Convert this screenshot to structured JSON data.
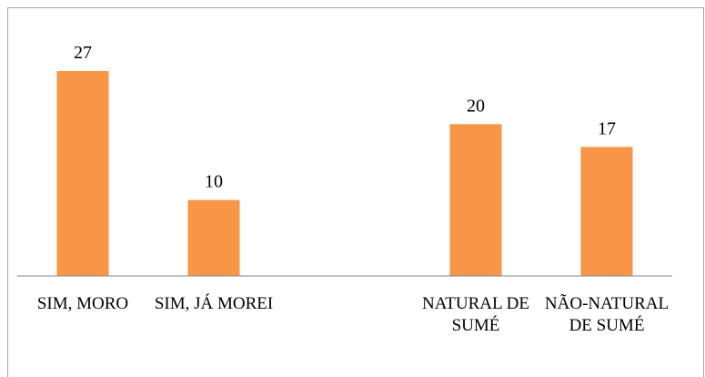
{
  "chart_data": {
    "type": "bar",
    "categories": [
      "SIM, MORO",
      "SIM, JÁ MOREI",
      null,
      "NATURAL DE SUMÉ",
      "NÃO-NATURAL DE SUMÉ"
    ],
    "values": [
      27,
      10,
      null,
      20,
      17
    ],
    "color": "#f79646",
    "ylim": [
      0,
      30
    ]
  }
}
